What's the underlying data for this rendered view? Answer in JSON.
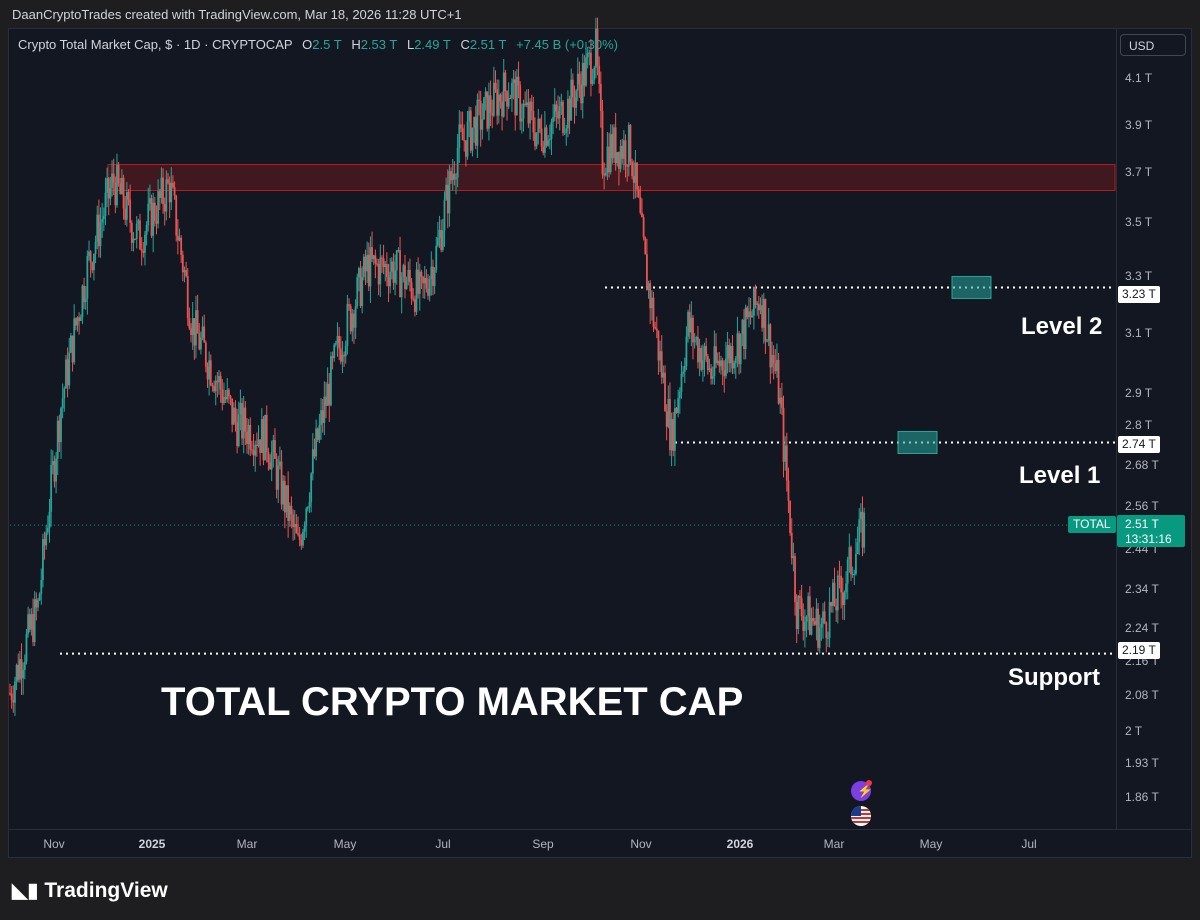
{
  "header": {
    "attribution": "DaanCryptoTrades created with TradingView.com, Mar 18, 2026 11:28 UTC+1"
  },
  "legend": {
    "symbol": "Crypto Total Market Cap, $ · 1D · CRYPTOCAP",
    "o_label": "O",
    "o": "2.5 T",
    "h_label": "H",
    "h": "2.53 T",
    "l_label": "L",
    "l": "2.49 T",
    "c_label": "C",
    "c": "2.51 T",
    "change": "+7.45 B (+0.30%)"
  },
  "currency": "USD",
  "colors": {
    "up": "#26a69a",
    "down": "#ef5350",
    "background": "#131722",
    "zone": "#b71c1c"
  },
  "price_axis": [
    "4.1 T",
    "3.9 T",
    "3.7 T",
    "3.5 T",
    "3.3 T",
    "3.1 T",
    "2.9 T",
    "2.8 T",
    "2.68 T",
    "2.56 T",
    "2.44 T",
    "2.34 T",
    "2.24 T",
    "2.16 T",
    "2.08 T",
    "2 T",
    "1.93 T",
    "1.86 T"
  ],
  "time_axis": [
    "Nov",
    "2025",
    "Mar",
    "May",
    "Jul",
    "Sep",
    "Nov",
    "2026",
    "Mar",
    "May",
    "Jul"
  ],
  "levels": {
    "level2_price": "3.23 T",
    "level1_price": "2.74 T",
    "support_price": "2.19 T"
  },
  "current": {
    "symbol": "TOTAL",
    "price": "2.51 T",
    "countdown": "13:31:16"
  },
  "annotations": {
    "level2": "Level 2",
    "level1": "Level 1",
    "support": "Support",
    "title": "TOTAL CRYPTO MARKET CAP"
  },
  "footer": {
    "brand": "TradingView"
  },
  "chart_data": {
    "type": "line",
    "title": "Crypto Total Market Cap, $ · 1D · CRYPTOCAP",
    "xlabel": "",
    "ylabel": "",
    "scale": "log",
    "x": [
      "2024-10-15",
      "2024-11-01",
      "2024-11-15",
      "2024-12-01",
      "2024-12-17",
      "2025-01-01",
      "2025-01-20",
      "2025-02-03",
      "2025-03-01",
      "2025-03-20",
      "2025-04-08",
      "2025-04-20",
      "2025-05-01",
      "2025-05-20",
      "2025-06-05",
      "2025-06-22",
      "2025-07-01",
      "2025-07-14",
      "2025-08-01",
      "2025-08-14",
      "2025-09-01",
      "2025-09-18",
      "2025-10-06",
      "2025-10-10",
      "2025-10-15",
      "2025-10-27",
      "2025-11-05",
      "2025-11-21",
      "2025-12-01",
      "2025-12-15",
      "2026-01-01",
      "2026-01-14",
      "2026-01-25",
      "2026-02-05",
      "2026-02-20",
      "2026-03-05",
      "2026-03-18"
    ],
    "values": [
      2.1,
      2.3,
      2.85,
      3.3,
      3.62,
      3.4,
      3.6,
      3.1,
      2.8,
      2.75,
      2.45,
      2.75,
      3.0,
      3.3,
      3.3,
      3.2,
      3.35,
      3.75,
      3.9,
      4.0,
      3.8,
      3.9,
      4.15,
      3.7,
      3.75,
      3.75,
      3.3,
      2.75,
      3.1,
      2.95,
      3.05,
      3.2,
      2.9,
      2.3,
      2.25,
      2.35,
      2.51
    ],
    "ylim": [
      1.82,
      4.2
    ],
    "zones": [
      {
        "low": 3.58,
        "high": 3.68
      }
    ],
    "horizontal_levels": [
      3.23,
      2.74,
      2.19
    ]
  }
}
